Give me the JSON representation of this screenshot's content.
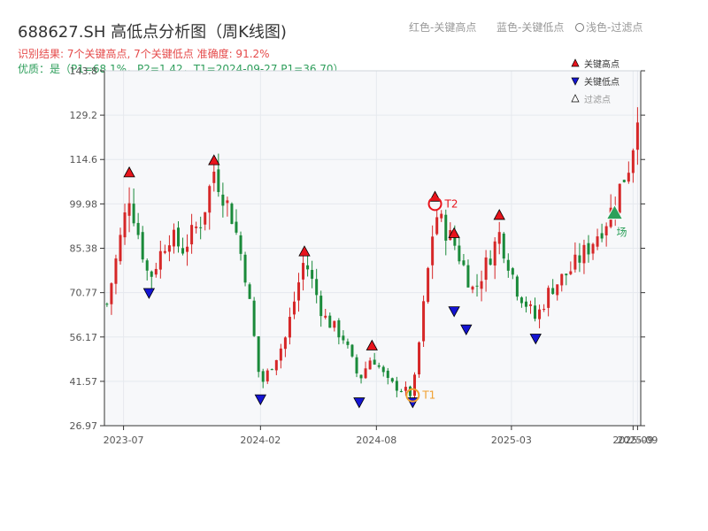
{
  "title": "688627.SH 高低点分析图（周K线图)",
  "subtitle_result": "识别结果: 7个关键高点, 7个关键低点   准确度: 91.2%",
  "subtitle_quality": "优质：是（P1=68.1%，P2=1.42，T1=2024-09-27 P1=36.70）",
  "header_hints": [
    {
      "text": "红色-关键高点"
    },
    {
      "text": "蓝色-关键低点"
    },
    {
      "text": "浅色-过滤点",
      "ring": true
    }
  ],
  "legend": [
    {
      "label": "关键高点",
      "color": "#e8141c",
      "marker": "up"
    },
    {
      "label": "关键低点",
      "color": "#1414d2",
      "marker": "down"
    },
    {
      "label": "过滤点",
      "color": "#ffffff",
      "marker": "up",
      "muted": true
    }
  ],
  "colors": {
    "up": "#d62728",
    "down": "#1a8a3a",
    "high": "#e8141c",
    "low": "#1414d2",
    "accent": "#f0a030",
    "filtered": "#2ca05a",
    "grid": "#e6e9ee",
    "plot_bg": "#f7f8fa"
  },
  "chart_data": {
    "type": "candlestick",
    "y_ticks": [
      "26.97",
      "41.57",
      "56.17",
      "70.77",
      "85.38",
      "99.98",
      "114.6",
      "129.2",
      "143.8"
    ],
    "ylim": [
      26.97,
      143.8
    ],
    "x_ticks": [
      {
        "label": "2023-07",
        "date": "2023-07-01"
      },
      {
        "label": "2024-02",
        "date": "2024-02-01"
      },
      {
        "label": "2024-08",
        "date": "2024-08-01"
      },
      {
        "label": "2025-03",
        "date": "2025-03-01"
      },
      {
        "label": "2025-09",
        "date": "2025-09-08"
      },
      {
        "label": "2025-09",
        "date": "2025-09-15"
      }
    ],
    "xlim": [
      "2023-06-01",
      "2025-09-20"
    ],
    "price_path": [
      [
        "2023-06-05",
        67
      ],
      [
        "2023-07-10",
        103
      ],
      [
        "2023-08-10",
        75
      ],
      [
        "2023-09-10",
        90
      ],
      [
        "2023-10-01",
        85
      ],
      [
        "2023-11-01",
        95
      ],
      [
        "2023-11-20",
        111
      ],
      [
        "2023-12-20",
        95
      ],
      [
        "2024-01-10",
        75
      ],
      [
        "2024-02-01",
        40
      ],
      [
        "2024-03-10",
        55
      ],
      [
        "2024-04-10",
        82
      ],
      [
        "2024-05-10",
        63
      ],
      [
        "2024-06-10",
        56
      ],
      [
        "2024-07-05",
        42
      ],
      [
        "2024-07-25",
        50
      ],
      [
        "2024-08-20",
        41
      ],
      [
        "2024-09-10",
        39
      ],
      [
        "2024-09-27",
        37
      ],
      [
        "2024-11-01",
        97
      ],
      [
        "2024-12-01",
        87
      ],
      [
        "2025-01-01",
        71
      ],
      [
        "2025-01-20",
        80
      ],
      [
        "2025-02-10",
        90
      ],
      [
        "2025-03-10",
        72
      ],
      [
        "2025-04-08",
        62
      ],
      [
        "2025-05-01",
        72
      ],
      [
        "2025-06-01",
        78
      ],
      [
        "2025-07-01",
        86
      ],
      [
        "2025-08-01",
        96
      ],
      [
        "2025-09-05",
        115
      ],
      [
        "2025-09-15",
        132
      ]
    ],
    "key_highs": [
      {
        "date": "2023-07-10",
        "price": 108
      },
      {
        "date": "2023-11-20",
        "price": 112
      },
      {
        "date": "2024-04-10",
        "price": 82
      },
      {
        "date": "2024-07-25",
        "price": 51
      },
      {
        "date": "2024-11-01",
        "price": 100
      },
      {
        "date": "2024-12-01",
        "price": 88
      },
      {
        "date": "2025-02-10",
        "price": 94
      }
    ],
    "key_lows": [
      {
        "date": "2023-08-10",
        "price": 73
      },
      {
        "date": "2024-02-01",
        "price": 38
      },
      {
        "date": "2024-07-05",
        "price": 37
      },
      {
        "date": "2024-09-27",
        "price": 37
      },
      {
        "date": "2024-12-01",
        "price": 67
      },
      {
        "date": "2024-12-20",
        "price": 61
      },
      {
        "date": "2025-04-08",
        "price": 58
      }
    ],
    "annotations": [
      {
        "label": "T1",
        "date": "2024-09-27",
        "price": 37,
        "color": "#f0a030"
      },
      {
        "label": "T2",
        "date": "2024-11-01",
        "price": 100,
        "color": "#e8141c"
      }
    ],
    "filtered_points": [
      {
        "date": "2025-08-10",
        "price": 97,
        "label": "场"
      }
    ]
  }
}
